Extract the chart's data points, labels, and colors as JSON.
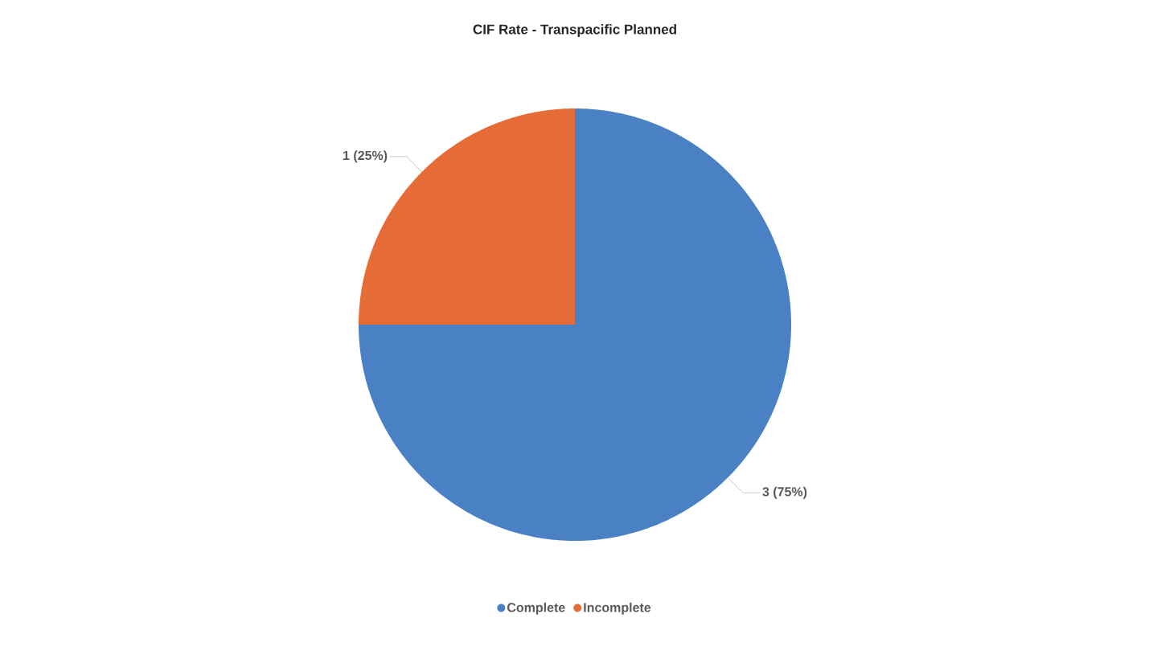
{
  "chart_data": {
    "type": "pie",
    "title": "CIF Rate - Transpacific Planned",
    "categories": [
      "Complete",
      "Incomplete"
    ],
    "values": [
      3,
      1
    ],
    "colors": [
      "#4a81c4",
      "#e66c37"
    ],
    "value_labels": [
      "3 (75%)",
      "1 (25%)"
    ],
    "legend": "bottom"
  }
}
